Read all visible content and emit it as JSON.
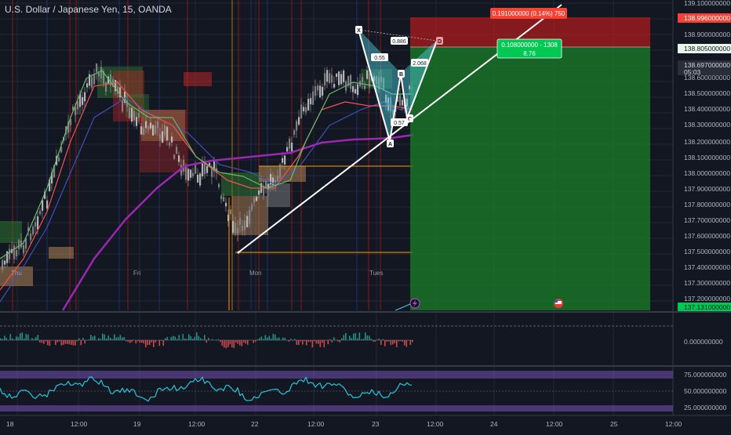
{
  "header": {
    "symbol_title": "U.S. Dollar / Japanese Yen, 15, OANDA"
  },
  "colors": {
    "background": "#131722",
    "grid": "#232733",
    "pane_separator": "#363a45",
    "text": "#d1d4dc",
    "axis_text": "#b2b5be",
    "ma_purple": "#9c27b0",
    "ma_red": "#ef5350",
    "ma_green": "#66bb6a",
    "ma_blue": "#3f51b5",
    "trendline": "#ffffff",
    "fib_orange": "#ff9800",
    "target_zone": "#1b7f2a",
    "stop_zone": "#b71c1c",
    "harmonic_fill": "#4dd0e1",
    "rsi_line": "#26c6da",
    "rsi_band": "#7e57c2"
  },
  "main_axis": {
    "ticks": [
      "139.100000000",
      "138.900000000",
      "138.600000000",
      "138.500000000",
      "138.400000000",
      "138.300000000",
      "138.200000000",
      "138.100000000",
      "138.000000000",
      "137.900000000",
      "137.800000000",
      "137.700000000",
      "137.600000000",
      "137.500000000",
      "137.400000000",
      "137.300000000",
      "137.200000000"
    ],
    "price_badges": [
      {
        "label": "138.996000000",
        "color": "#f44336",
        "text_color": "#ffffff"
      },
      {
        "label": "138.805000000",
        "color": "#e8f5e9",
        "text_color": "#131722"
      },
      {
        "label": "138.697000000",
        "color": "#2a2e39",
        "text_color": "#d1d4dc"
      },
      {
        "label": "05:03",
        "color": "#2a2e39",
        "text_color": "#d1d4dc"
      },
      {
        "label": "137.131000000",
        "color": "#00c853",
        "text_color": "#131722"
      }
    ]
  },
  "time_labels_inline": [
    "Thu",
    "Fri",
    "Mon",
    "Tues"
  ],
  "x_axis": {
    "labels": [
      "18",
      "12:00",
      "19",
      "12:00",
      "22",
      "12:00",
      "23",
      "12:00",
      "24",
      "12:00",
      "25",
      "12:00"
    ]
  },
  "harmonic_pattern": {
    "points": [
      "X",
      "A",
      "B",
      "C",
      "D"
    ],
    "ratios": [
      "0.886",
      "0.55",
      "2.068",
      "0.57"
    ]
  },
  "position_labels": {
    "stop_label": "0.191000000 (0.14%) 750",
    "target_label_1": "0.108000000 - 1308",
    "target_label_2": "8.76"
  },
  "macd_pane": {
    "axis_ticks": [
      "0.000000000"
    ]
  },
  "rsi_pane": {
    "axis_ticks": [
      "75.000000000",
      "50.000000000",
      "25.000000000"
    ]
  },
  "icons": [
    "lightning-icon",
    "us-flag-icon"
  ]
}
